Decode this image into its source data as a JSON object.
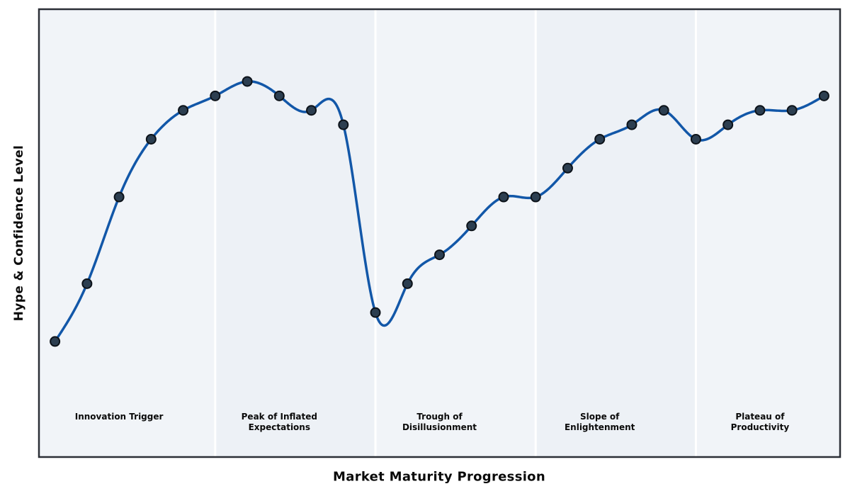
{
  "chart_data": {
    "type": "line",
    "title": "",
    "xlabel": "Market Maturity Progression",
    "ylabel": "Hype & Confidence Level",
    "x": [
      0,
      1,
      2,
      3,
      4,
      5,
      6,
      7,
      8,
      9,
      10,
      11,
      12,
      13,
      14,
      15,
      16,
      17,
      18,
      19,
      20,
      21,
      22,
      23,
      24
    ],
    "y": [
      10,
      30,
      60,
      80,
      90,
      95,
      100,
      95,
      90,
      85,
      20,
      30,
      40,
      50,
      60,
      60,
      70,
      80,
      85,
      90,
      80,
      85,
      90,
      90,
      95
    ],
    "xlim": [
      -0.5,
      24.5
    ],
    "ylim": [
      -30,
      125
    ],
    "grid": false,
    "legend": null,
    "curve_style": "smooth-cubic-spline",
    "phase_boundaries": [
      5,
      10,
      15,
      20
    ],
    "phases": [
      {
        "label": "Innovation Trigger",
        "center_x": 2
      },
      {
        "label": "Peak of Inflated\nExpectations",
        "center_x": 7
      },
      {
        "label": "Trough of\nDisillusionment",
        "center_x": 12
      },
      {
        "label": "Slope of\nEnlightenment",
        "center_x": 17
      },
      {
        "label": "Plateau of\nProductivity",
        "center_x": 22
      }
    ],
    "colors": {
      "line": "#1257a8",
      "marker_fill": "#2c3e50",
      "marker_edge": "#0c1219",
      "band_light": "#f1f4f8",
      "band_dark": "#edf1f6",
      "separator": "#ffffff",
      "border": "#2b2f36",
      "text": "#0a0a0a"
    }
  }
}
